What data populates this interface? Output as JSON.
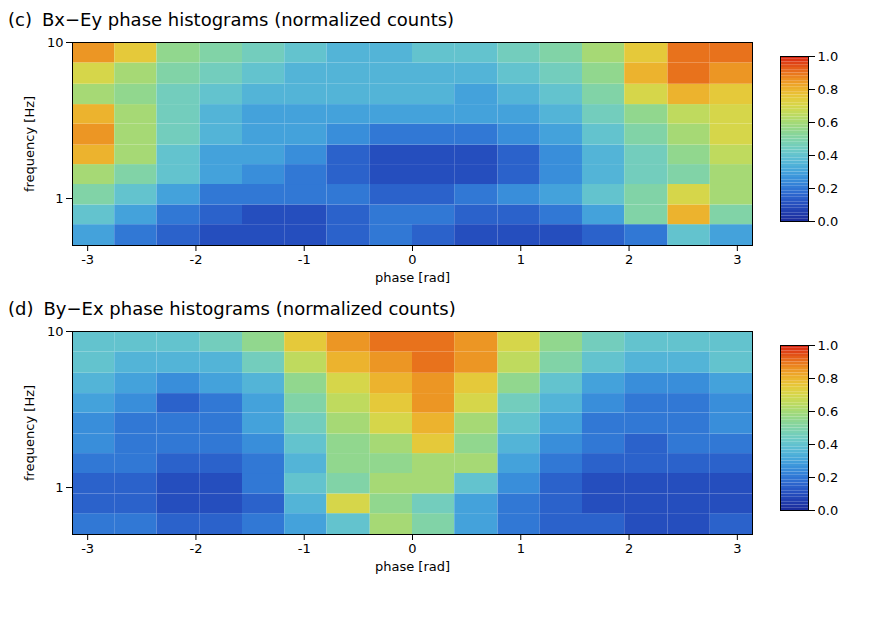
{
  "chart_data": [
    {
      "type": "heatmap",
      "panel": "(c)",
      "title": "Bx−Ey phase histograms (normalized counts)",
      "xlabel": "phase [rad]",
      "ylabel": "frequency [Hz]",
      "log": "y",
      "xlim": [
        -3.14,
        3.14
      ],
      "xticks": [
        -3,
        -2,
        -1,
        0,
        1,
        2,
        3
      ],
      "ylim": [
        0.5,
        10
      ],
      "yticks": [
        1,
        10
      ],
      "x_bins": [
        -3.14,
        -2.75,
        -2.36,
        -1.96,
        -1.57,
        -1.18,
        -0.79,
        -0.39,
        0,
        0.39,
        0.79,
        1.18,
        1.57,
        1.96,
        2.36,
        2.75,
        3.14
      ],
      "y_bins": [
        0.5,
        0.68,
        0.91,
        1.23,
        1.65,
        2.2,
        3.0,
        4.0,
        5.4,
        7.4,
        10
      ],
      "values": [
        [
          0.3,
          0.2,
          0.15,
          0.1,
          0.1,
          0.1,
          0.15,
          0.2,
          0.15,
          0.1,
          0.1,
          0.1,
          0.15,
          0.2,
          0.4,
          0.3
        ],
        [
          0.4,
          0.3,
          0.2,
          0.15,
          0.1,
          0.1,
          0.15,
          0.2,
          0.2,
          0.15,
          0.15,
          0.2,
          0.3,
          0.5,
          0.8,
          0.5
        ],
        [
          0.5,
          0.4,
          0.3,
          0.2,
          0.2,
          0.2,
          0.2,
          0.15,
          0.15,
          0.2,
          0.25,
          0.3,
          0.4,
          0.5,
          0.7,
          0.6
        ],
        [
          0.6,
          0.5,
          0.4,
          0.3,
          0.25,
          0.2,
          0.15,
          0.1,
          0.1,
          0.1,
          0.15,
          0.25,
          0.35,
          0.45,
          0.5,
          0.6
        ],
        [
          0.8,
          0.6,
          0.4,
          0.3,
          0.3,
          0.25,
          0.15,
          0.1,
          0.1,
          0.1,
          0.15,
          0.25,
          0.35,
          0.45,
          0.55,
          0.65
        ],
        [
          0.85,
          0.6,
          0.45,
          0.35,
          0.3,
          0.3,
          0.25,
          0.2,
          0.2,
          0.2,
          0.25,
          0.3,
          0.4,
          0.5,
          0.6,
          0.7
        ],
        [
          0.8,
          0.6,
          0.45,
          0.35,
          0.3,
          0.3,
          0.3,
          0.3,
          0.3,
          0.3,
          0.3,
          0.35,
          0.45,
          0.55,
          0.65,
          0.7
        ],
        [
          0.6,
          0.55,
          0.45,
          0.4,
          0.35,
          0.35,
          0.35,
          0.35,
          0.35,
          0.3,
          0.35,
          0.4,
          0.5,
          0.7,
          0.8,
          0.75
        ],
        [
          0.7,
          0.6,
          0.5,
          0.45,
          0.4,
          0.35,
          0.35,
          0.35,
          0.35,
          0.35,
          0.4,
          0.45,
          0.55,
          0.8,
          0.9,
          0.85
        ],
        [
          0.85,
          0.75,
          0.55,
          0.5,
          0.45,
          0.4,
          0.35,
          0.35,
          0.4,
          0.4,
          0.45,
          0.5,
          0.6,
          0.75,
          0.9,
          0.9
        ]
      ],
      "colorbar": {
        "range": [
          0,
          1
        ],
        "ticks": [
          {
            "value": 0,
            "label": "0.0"
          },
          {
            "value": 0.2,
            "label": "0.2"
          },
          {
            "value": 0.4,
            "label": "0.4"
          },
          {
            "value": 0.6,
            "label": "0.6"
          },
          {
            "value": 0.8,
            "label": "0.8"
          },
          {
            "value": 1,
            "label": "1.0"
          }
        ]
      }
    },
    {
      "type": "heatmap",
      "panel": "(d)",
      "title": "By−Ex phase histograms (normalized counts)",
      "xlabel": "phase [rad]",
      "ylabel": "frequency [Hz]",
      "log": "y",
      "xlim": [
        -3.14,
        3.14
      ],
      "xticks": [
        -3,
        -2,
        -1,
        0,
        1,
        2,
        3
      ],
      "ylim": [
        0.5,
        10
      ],
      "yticks": [
        1,
        10
      ],
      "x_bins": [
        -3.14,
        -2.75,
        -2.36,
        -1.96,
        -1.57,
        -1.18,
        -0.79,
        -0.39,
        0,
        0.39,
        0.79,
        1.18,
        1.57,
        1.96,
        2.36,
        2.75,
        3.14
      ],
      "y_bins": [
        0.5,
        0.68,
        0.91,
        1.23,
        1.65,
        2.2,
        3.0,
        4.0,
        5.4,
        7.4,
        10
      ],
      "values": [
        [
          0.2,
          0.2,
          0.15,
          0.15,
          0.2,
          0.3,
          0.4,
          0.6,
          0.5,
          0.3,
          0.2,
          0.15,
          0.15,
          0.1,
          0.1,
          0.15
        ],
        [
          0.15,
          0.15,
          0.1,
          0.1,
          0.15,
          0.35,
          0.7,
          0.55,
          0.45,
          0.3,
          0.2,
          0.15,
          0.1,
          0.1,
          0.1,
          0.1
        ],
        [
          0.15,
          0.15,
          0.1,
          0.1,
          0.2,
          0.4,
          0.5,
          0.6,
          0.6,
          0.4,
          0.25,
          0.15,
          0.1,
          0.1,
          0.1,
          0.1
        ],
        [
          0.2,
          0.2,
          0.15,
          0.15,
          0.2,
          0.35,
          0.55,
          0.55,
          0.6,
          0.6,
          0.3,
          0.2,
          0.15,
          0.15,
          0.15,
          0.15
        ],
        [
          0.25,
          0.2,
          0.2,
          0.2,
          0.25,
          0.4,
          0.55,
          0.6,
          0.75,
          0.55,
          0.35,
          0.25,
          0.2,
          0.15,
          0.2,
          0.2
        ],
        [
          0.25,
          0.2,
          0.2,
          0.2,
          0.3,
          0.45,
          0.6,
          0.7,
          0.8,
          0.6,
          0.4,
          0.3,
          0.2,
          0.2,
          0.2,
          0.25
        ],
        [
          0.3,
          0.25,
          0.15,
          0.2,
          0.3,
          0.5,
          0.65,
          0.75,
          0.85,
          0.7,
          0.45,
          0.35,
          0.25,
          0.2,
          0.2,
          0.25
        ],
        [
          0.35,
          0.3,
          0.25,
          0.3,
          0.35,
          0.55,
          0.7,
          0.8,
          0.85,
          0.75,
          0.55,
          0.4,
          0.3,
          0.25,
          0.25,
          0.3
        ],
        [
          0.4,
          0.35,
          0.35,
          0.35,
          0.45,
          0.65,
          0.8,
          0.85,
          0.9,
          0.85,
          0.65,
          0.5,
          0.4,
          0.35,
          0.35,
          0.4
        ],
        [
          0.4,
          0.4,
          0.4,
          0.45,
          0.55,
          0.75,
          0.85,
          0.9,
          0.9,
          0.85,
          0.7,
          0.55,
          0.45,
          0.4,
          0.4,
          0.4
        ]
      ],
      "colorbar": {
        "range": [
          0,
          1
        ],
        "ticks": [
          {
            "value": 0,
            "label": "0.0"
          },
          {
            "value": 0.2,
            "label": "0.2"
          },
          {
            "value": 0.4,
            "label": "0.4"
          },
          {
            "value": 0.6,
            "label": "0.6"
          },
          {
            "value": 0.8,
            "label": "0.8"
          },
          {
            "value": 1,
            "label": "1.0"
          }
        ]
      }
    }
  ]
}
